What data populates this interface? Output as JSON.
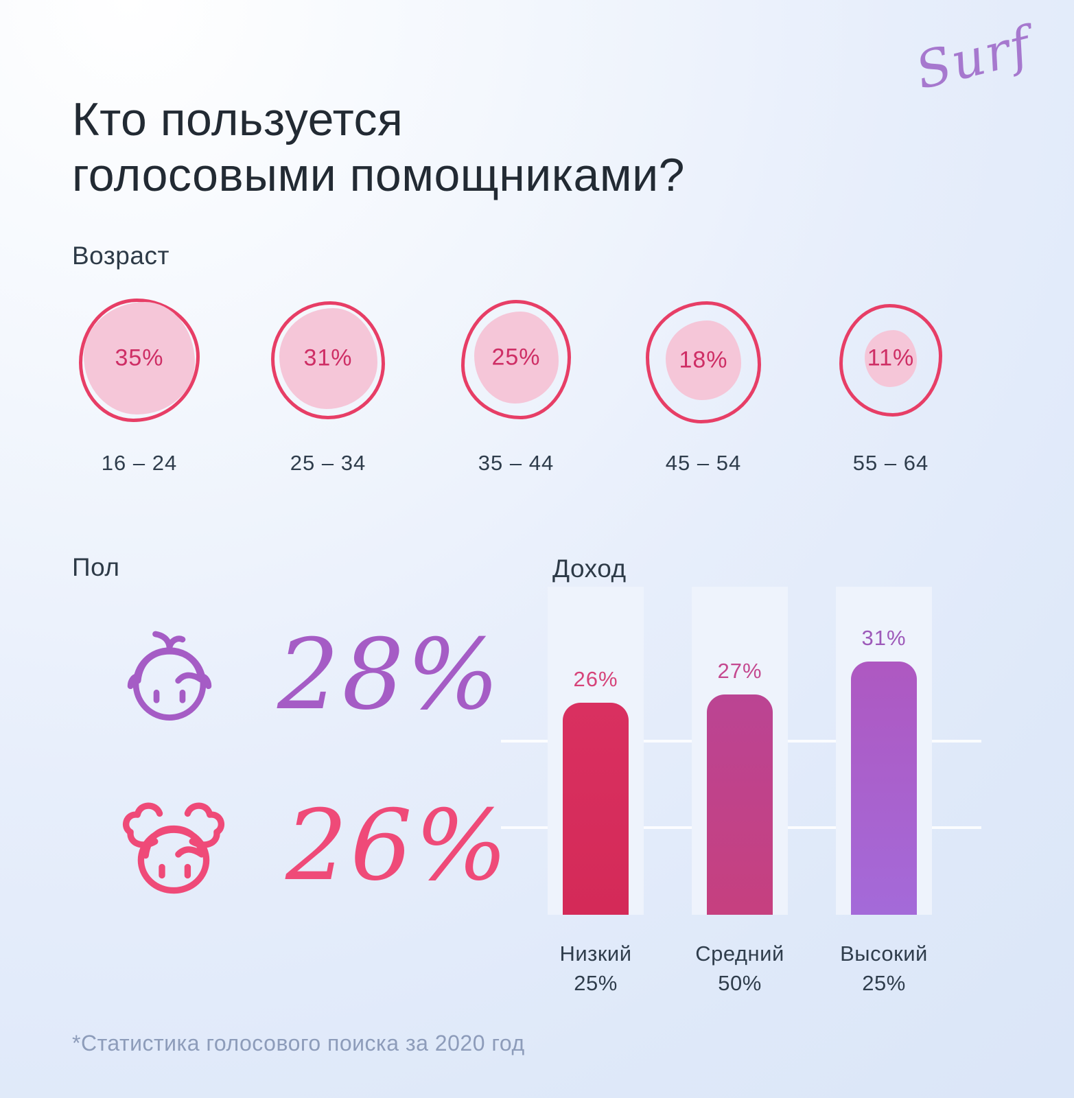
{
  "page": {
    "title": "Кто пользуется\nголосовыми помощниками?",
    "logo": "Surf",
    "footnote": "*Статистика голосового поиска за 2020 год"
  },
  "colors": {
    "accent_pink": "#e73e66",
    "accent_crimson": "#ce2e65",
    "accent_purple": "#a55cc5",
    "girl_pink": "#ef4a78",
    "bubble_fill": "#f5c6d8",
    "bar_low": "#d62b5b",
    "bar_mid": "#c2418c",
    "bar_high": "#ab63cd",
    "text_dark": "#222a33",
    "footnote_gray": "#8d9cba"
  },
  "icons": [
    {
      "name": "surf-logo"
    },
    {
      "name": "boy-icon"
    },
    {
      "name": "girl-icon"
    }
  ],
  "chart_data": [
    {
      "type": "bubble",
      "title": "Возраст",
      "categories": [
        "16 – 24",
        "25 – 34",
        "35 – 44",
        "45 – 54",
        "55 – 64"
      ],
      "values": [
        35,
        31,
        25,
        18,
        11
      ],
      "value_labels": [
        "35%",
        "31%",
        "25%",
        "18%",
        "11%"
      ],
      "unit": "%",
      "note": "fill area of each blob is proportional to value; max value 35 fills outline fully"
    },
    {
      "type": "pictogram",
      "title": "Пол",
      "categories": [
        "boy",
        "girl"
      ],
      "values": [
        28,
        26
      ],
      "value_labels": [
        "28%",
        "26%"
      ],
      "unit": "%"
    },
    {
      "type": "bar",
      "title": "Доход",
      "categories": [
        "Низкий",
        "Средний",
        "Высокий"
      ],
      "category_shares": [
        "25%",
        "50%",
        "25%"
      ],
      "values": [
        26,
        27,
        31
      ],
      "value_labels": [
        "26%",
        "27%",
        "31%"
      ],
      "unit": "%",
      "ylim": [
        0,
        35
      ],
      "grid": true,
      "legend": "none",
      "bar_colors": [
        "#d62b5b",
        "#c2418c",
        "#ab63cd"
      ]
    }
  ]
}
